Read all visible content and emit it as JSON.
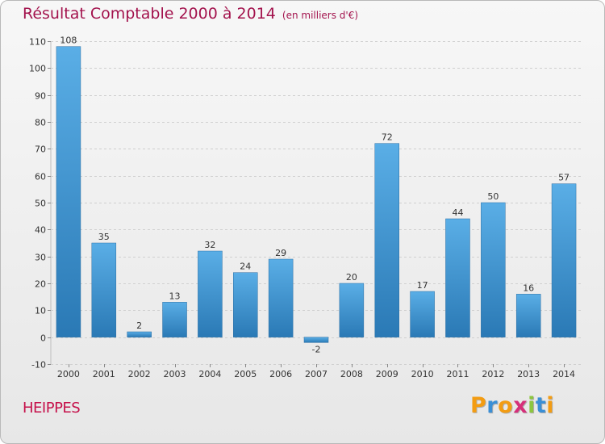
{
  "chart_data": {
    "type": "bar",
    "title": "Résultat Comptable 2000 à 2014",
    "subtitle": "(en milliers d'€)",
    "categories": [
      "2000",
      "2001",
      "2002",
      "2003",
      "2004",
      "2005",
      "2006",
      "2007",
      "2008",
      "2009",
      "2010",
      "2011",
      "2012",
      "2013",
      "2014"
    ],
    "values": [
      108,
      35,
      2,
      13,
      32,
      24,
      29,
      -2,
      20,
      72,
      17,
      44,
      50,
      16,
      57
    ],
    "ylim": [
      -10,
      110
    ],
    "yticks": [
      -10,
      0,
      10,
      20,
      30,
      40,
      50,
      60,
      70,
      80,
      90,
      100,
      110
    ],
    "grid": true,
    "xlabel": "",
    "ylabel": ""
  },
  "commune": "HEIPPES",
  "logo": {
    "letters": [
      "P",
      "r",
      "o",
      "x",
      "i",
      "t",
      "i"
    ],
    "colors": [
      "#f39c12",
      "#3a8fd6",
      "#f39c12",
      "#d62f7a",
      "#8cc63f",
      "#3a8fd6",
      "#f39c12"
    ]
  },
  "colors": {
    "title": "#a3134d",
    "bar_light": "#5aaee6",
    "bar_dark": "#2a79b5",
    "grid": "#cfcfcf"
  }
}
